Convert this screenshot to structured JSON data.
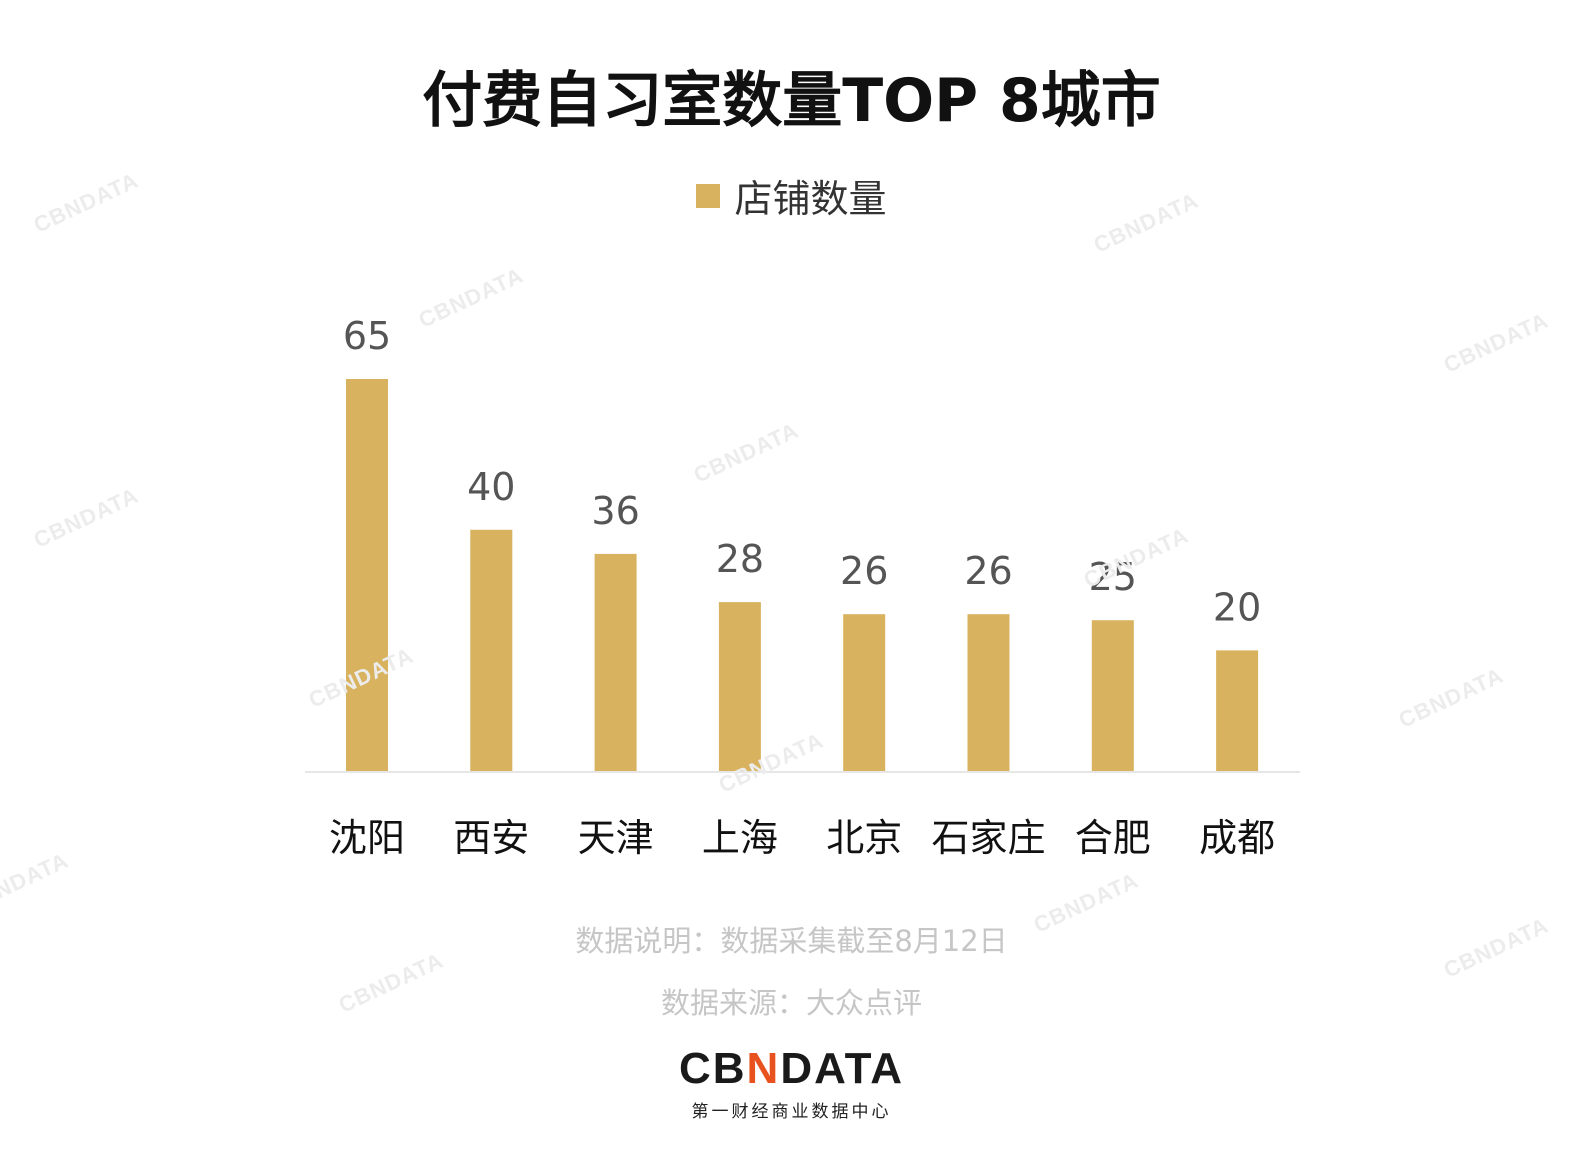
{
  "chart_data": {
    "type": "bar",
    "title": "付费自习室数量TOP 8城市",
    "categories": [
      "沈阳",
      "西安",
      "天津",
      "上海",
      "北京",
      "石家庄",
      "合肥",
      "成都"
    ],
    "series": [
      {
        "name": "店铺数量",
        "values": [
          65,
          40,
          36,
          28,
          26,
          26,
          25,
          20
        ]
      }
    ],
    "ylim": [
      0,
      65
    ],
    "grid": false,
    "legend": "top-center",
    "bar_color": "#d8b25e"
  },
  "notes": {
    "data_note": "数据说明：数据采集截至8月12日",
    "data_source": "数据来源：大众点评"
  },
  "logo": {
    "prefix": "CB",
    "accent": "N",
    "suffix": "DATA",
    "tagline": "第一财经商业数据中心",
    "accent_color": "#e8521e"
  },
  "watermark": {
    "text": "CBNDATA"
  }
}
